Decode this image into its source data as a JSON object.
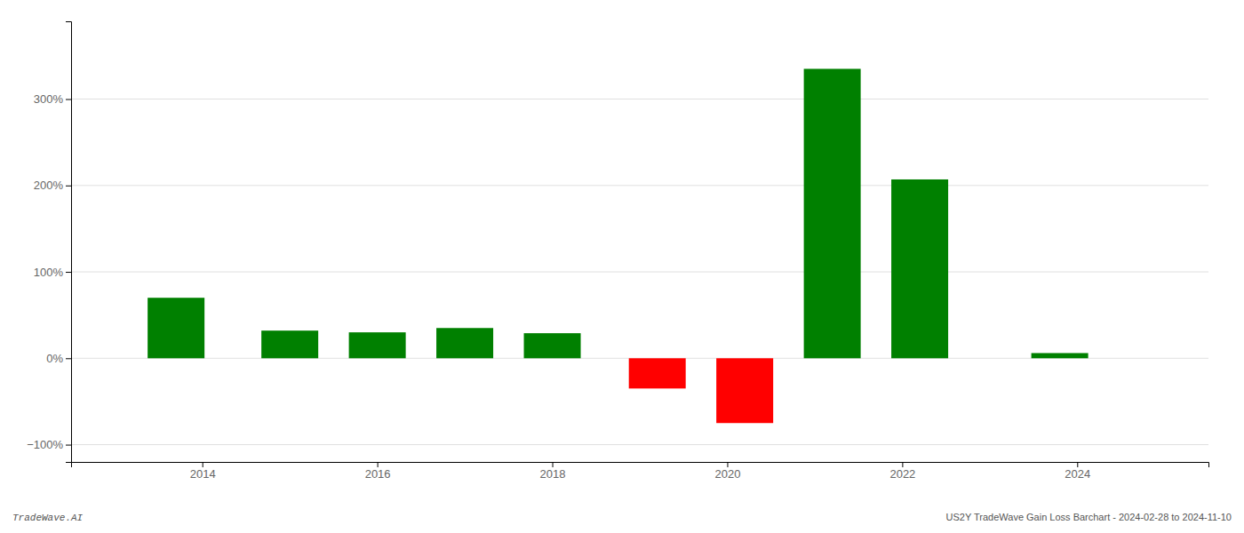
{
  "chart_data": {
    "type": "bar",
    "x": [
      2013.7,
      2015.0,
      2016.0,
      2017.0,
      2018.0,
      2019.2,
      2020.2,
      2021.2,
      2022.2,
      2023.8
    ],
    "values": [
      70,
      32,
      30,
      35,
      29,
      -35,
      -75,
      335,
      207,
      6
    ],
    "colors": [
      "#008000",
      "#008000",
      "#008000",
      "#008000",
      "#008000",
      "#ff0000",
      "#ff0000",
      "#008000",
      "#008000",
      "#008000"
    ],
    "xlim": [
      2012.5,
      2025.5
    ],
    "xticks": [
      2014,
      2016,
      2018,
      2020,
      2022,
      2024
    ],
    "ylim": [
      -120,
      390
    ],
    "yticks": [
      {
        "value": -100,
        "label": "−100%"
      },
      {
        "value": 0,
        "label": "0%"
      },
      {
        "value": 100,
        "label": "100%"
      },
      {
        "value": 200,
        "label": "200%"
      },
      {
        "value": 300,
        "label": "300%"
      }
    ],
    "grid": true,
    "annotations": [
      "TradeWave.AI",
      "US2Y TradeWave Gain Loss Barchart - 2024-02-28 to 2024-11-10"
    ]
  }
}
